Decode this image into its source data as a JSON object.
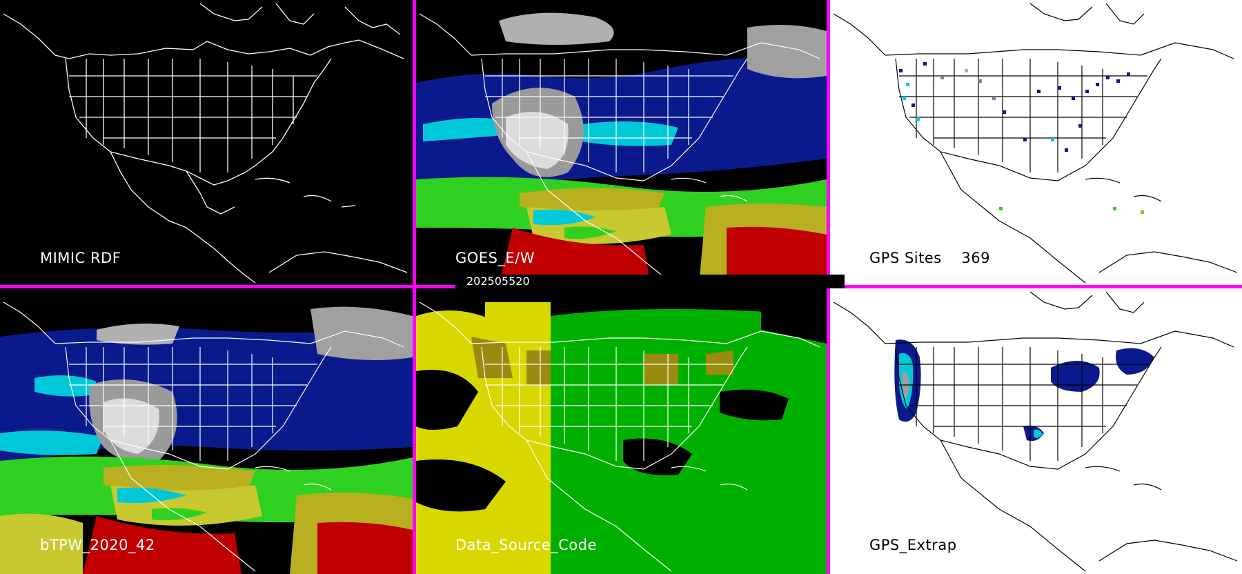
{
  "panels": [
    {
      "title": "MIMIC RDF"
    },
    {
      "title": "GOES_E/W"
    },
    {
      "title": "GPS Sites    369"
    },
    {
      "title": "bTPW_2020_42"
    },
    {
      "title": "Data_Source_Code"
    },
    {
      "title": "GPS_Extrap"
    }
  ],
  "timestamp": "202505520",
  "colors": {
    "divider": "#ff00ff",
    "map_lines_dark": "#ffffff",
    "map_lines_light": "#000000",
    "tpw_dry": "#808080",
    "tpw_low": "#0a1a8c",
    "tpw_mid": "#00c8d8",
    "tpw_high": "#30d020",
    "tpw_higher": "#b8b020",
    "tpw_max": "#c00000",
    "source_yellow": "#d8d800",
    "source_green": "#00b000",
    "source_olive": "#9a8a10"
  }
}
